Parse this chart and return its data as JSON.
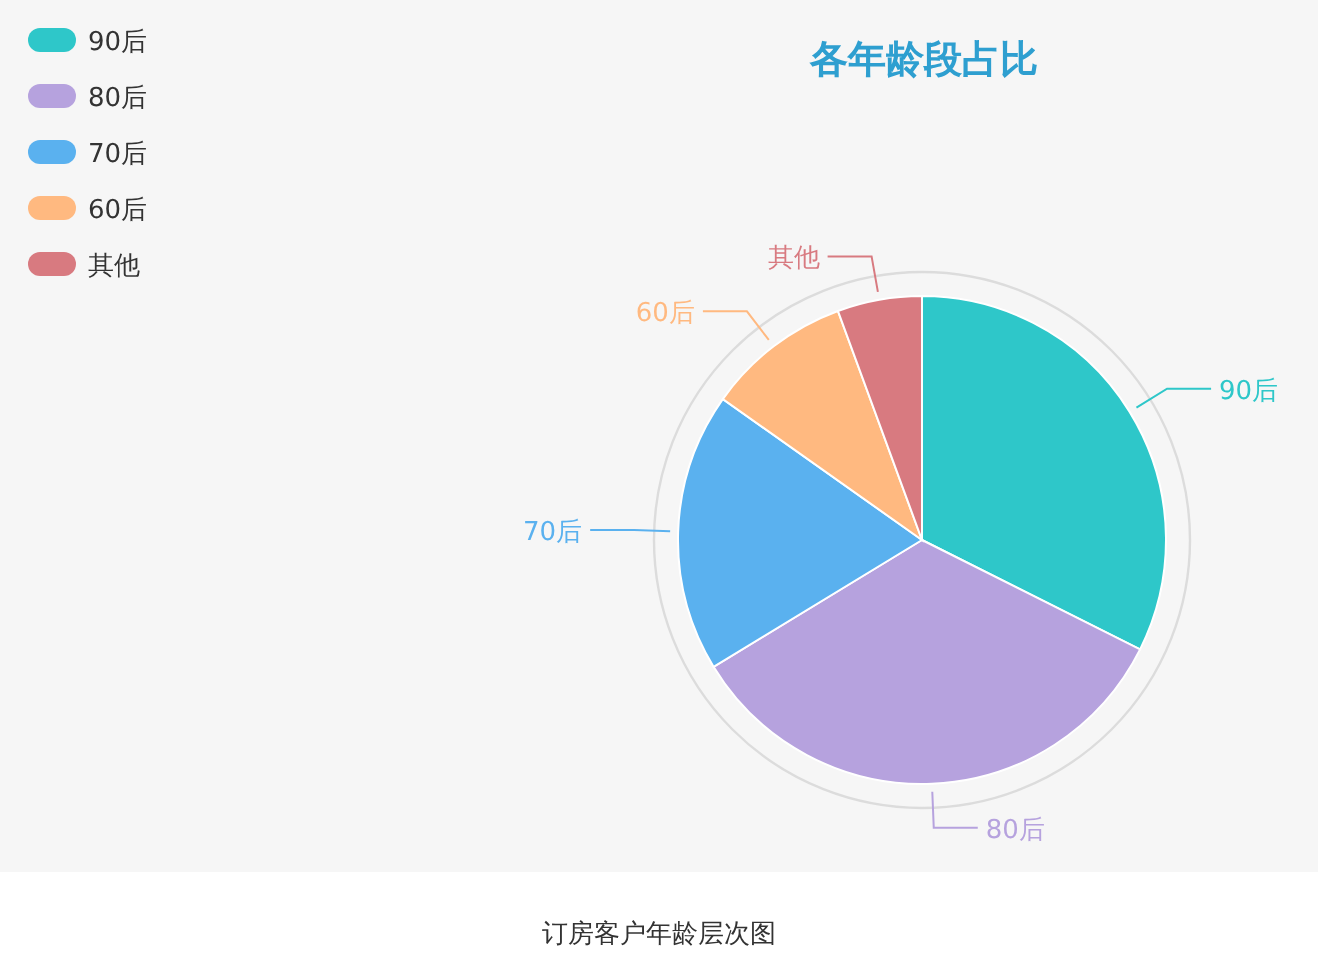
{
  "chart_data": {
    "type": "pie",
    "title": "各年龄段占比",
    "categories": [
      "90后",
      "80后",
      "70后",
      "60后",
      "其他"
    ],
    "values": [
      32.4,
      33.9,
      18.5,
      9.6,
      5.6
    ],
    "colors": [
      "#2ec7c9",
      "#b6a2de",
      "#5ab1ef",
      "#ffb980",
      "#d87a80"
    ],
    "legend": "top left",
    "annotations": [
      "订房客户年龄层次图"
    ]
  }
}
